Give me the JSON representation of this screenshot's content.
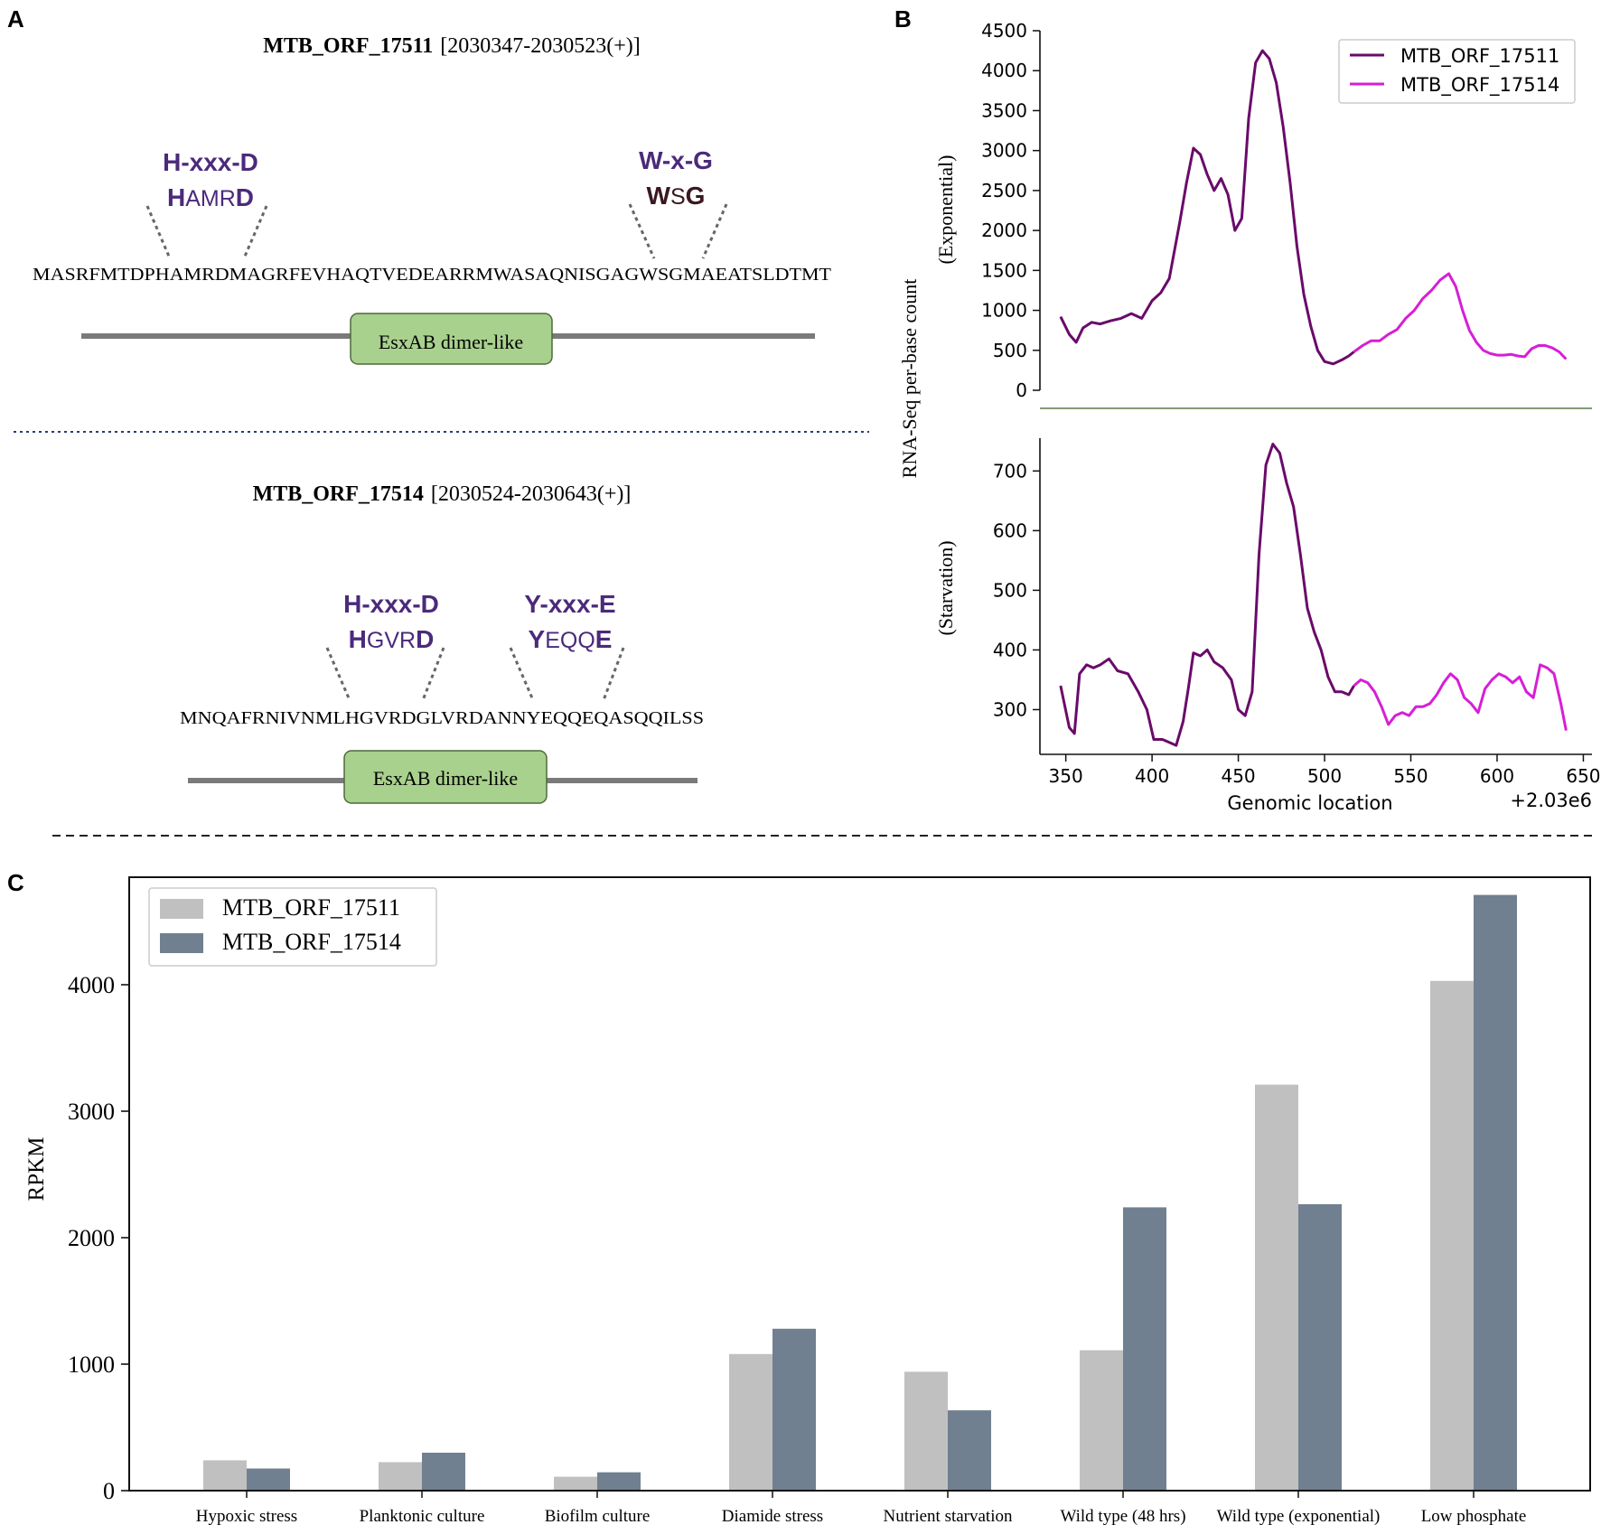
{
  "panels": {
    "a": "A",
    "b": "B",
    "c": "C"
  },
  "panel_a": {
    "orf1": {
      "name": "MTB_ORF_17511",
      "coords": "[2030347-2030523(+)]",
      "motif1": {
        "pattern": "H-xxx-D",
        "first": "H",
        "middle": "AMR",
        "last": "D"
      },
      "motif2": {
        "pattern": "W-x-G",
        "first": "W",
        "middle": "S",
        "last": "G"
      },
      "sequence": "MASRFMTDPHAMRDMAGRFEVHAQTVEDEARRMWASAQNISGAGWSGMAEATSLDTMT",
      "domain": "EsxAB dimer-like"
    },
    "orf2": {
      "name": "MTB_ORF_17514",
      "coords": "[2030524-2030643(+)]",
      "motif1": {
        "pattern": "H-xxx-D",
        "first": "H",
        "middle": "GVR",
        "last": "D"
      },
      "motif2": {
        "pattern": "Y-xxx-E",
        "first": "Y",
        "middle": "EQQ",
        "last": "E"
      },
      "sequence": "MNQAFRNIVNMLHGVRDGLVRDANNYEQQEQASQQILSS",
      "domain": "EsxAB dimer-like"
    },
    "colors": {
      "motif": "#4b2a7b",
      "motif_dark": "#3a1820",
      "domain_fill": "#a9d18e",
      "bar": "#7a7a7a"
    }
  },
  "chart_data": [
    {
      "type": "line",
      "panel": "B (top)",
      "ylabel": "(Exponential)",
      "shared_ylabel": "RNA-Seq per-base count",
      "xlim": [
        335,
        655
      ],
      "ylim": [
        0,
        4500
      ],
      "yticks": [
        0,
        500,
        1000,
        1500,
        2000,
        2500,
        3000,
        3500,
        4000,
        4500
      ],
      "legend": [
        "MTB_ORF_17511",
        "MTB_ORF_17514"
      ],
      "legend_position": "top-right",
      "series": [
        {
          "name": "MTB_ORF_17511",
          "color": "#6a0a6a",
          "x": [
            347,
            352,
            356,
            360,
            365,
            370,
            376,
            382,
            388,
            394,
            400,
            405,
            410,
            416,
            420,
            424,
            428,
            432,
            436,
            440,
            444,
            448,
            452,
            456,
            460,
            464,
            468,
            472,
            476,
            480,
            484,
            488,
            492,
            496,
            500,
            505,
            510,
            514,
            517
          ],
          "y": [
            920,
            700,
            600,
            780,
            850,
            830,
            870,
            900,
            960,
            900,
            1120,
            1220,
            1400,
            2100,
            2600,
            3030,
            2950,
            2700,
            2500,
            2650,
            2450,
            2000,
            2150,
            3400,
            4100,
            4250,
            4150,
            3850,
            3300,
            2600,
            1800,
            1200,
            800,
            500,
            360,
            330,
            380,
            430,
            480
          ]
        },
        {
          "name": "MTB_ORF_17514",
          "color": "#d61fd6",
          "x": [
            517,
            522,
            527,
            532,
            537,
            542,
            547,
            552,
            557,
            562,
            567,
            572,
            576,
            580,
            584,
            588,
            592,
            596,
            600,
            604,
            608,
            612,
            616,
            620,
            624,
            628,
            632,
            636,
            640
          ],
          "y": [
            480,
            560,
            620,
            620,
            700,
            760,
            900,
            1000,
            1150,
            1250,
            1380,
            1460,
            1300,
            1000,
            750,
            600,
            500,
            460,
            440,
            440,
            450,
            430,
            420,
            520,
            560,
            560,
            530,
            480,
            390
          ]
        }
      ]
    },
    {
      "type": "line",
      "panel": "B (bottom)",
      "ylabel": "(Starvation)",
      "xlabel": "Genomic location",
      "offset_label": "+2.03e6",
      "xlim": [
        335,
        655
      ],
      "ylim": [
        225,
        755
      ],
      "xticks": [
        350,
        400,
        450,
        500,
        550,
        600,
        650
      ],
      "yticks": [
        300,
        400,
        500,
        600,
        700
      ],
      "series": [
        {
          "name": "MTB_ORF_17511",
          "color": "#6a0a6a",
          "x": [
            347,
            352,
            355,
            358,
            362,
            366,
            370,
            375,
            380,
            386,
            392,
            397,
            401,
            406,
            410,
            414,
            418,
            421,
            424,
            428,
            432,
            436,
            441,
            446,
            450,
            454,
            458,
            462,
            466,
            470,
            474,
            478,
            482,
            486,
            490,
            494,
            498,
            502,
            506,
            510,
            514,
            517
          ],
          "y": [
            340,
            270,
            260,
            360,
            375,
            370,
            375,
            385,
            365,
            360,
            330,
            300,
            250,
            250,
            245,
            240,
            280,
            335,
            395,
            390,
            400,
            380,
            370,
            350,
            300,
            290,
            330,
            560,
            710,
            745,
            730,
            680,
            640,
            560,
            470,
            430,
            400,
            355,
            330,
            330,
            325,
            340
          ]
        },
        {
          "name": "MTB_ORF_17514",
          "color": "#d61fd6",
          "x": [
            517,
            521,
            525,
            529,
            533,
            537,
            541,
            545,
            549,
            553,
            557,
            561,
            565,
            569,
            573,
            577,
            581,
            585,
            589,
            593,
            597,
            601,
            605,
            609,
            613,
            617,
            621,
            625,
            629,
            633,
            637,
            640
          ],
          "y": [
            340,
            350,
            345,
            330,
            305,
            275,
            290,
            295,
            290,
            305,
            305,
            310,
            325,
            345,
            360,
            350,
            320,
            310,
            295,
            335,
            350,
            360,
            355,
            345,
            355,
            330,
            320,
            375,
            370,
            360,
            310,
            265
          ]
        }
      ]
    },
    {
      "type": "bar",
      "panel": "C",
      "ylabel": "RPKM",
      "ylim": [
        0,
        4850
      ],
      "yticks": [
        0,
        1000,
        2000,
        3000,
        4000
      ],
      "categories": [
        "Hypoxic stress",
        "Planktonic culture",
        "Biofilm culture",
        "Diamide stress",
        "Nutrient starvation",
        "Wild type (48 hrs)",
        "Wild type (exponential)",
        "Low phosphate"
      ],
      "legend_position": "top-left",
      "series": [
        {
          "name": "MTB_ORF_17511",
          "color": "#c0c0c0",
          "values": [
            240,
            225,
            110,
            1080,
            940,
            1110,
            3210,
            4030
          ]
        },
        {
          "name": "MTB_ORF_17514",
          "color": "#708090",
          "values": [
            175,
            300,
            145,
            1280,
            635,
            2240,
            2265,
            4710
          ]
        }
      ]
    }
  ]
}
